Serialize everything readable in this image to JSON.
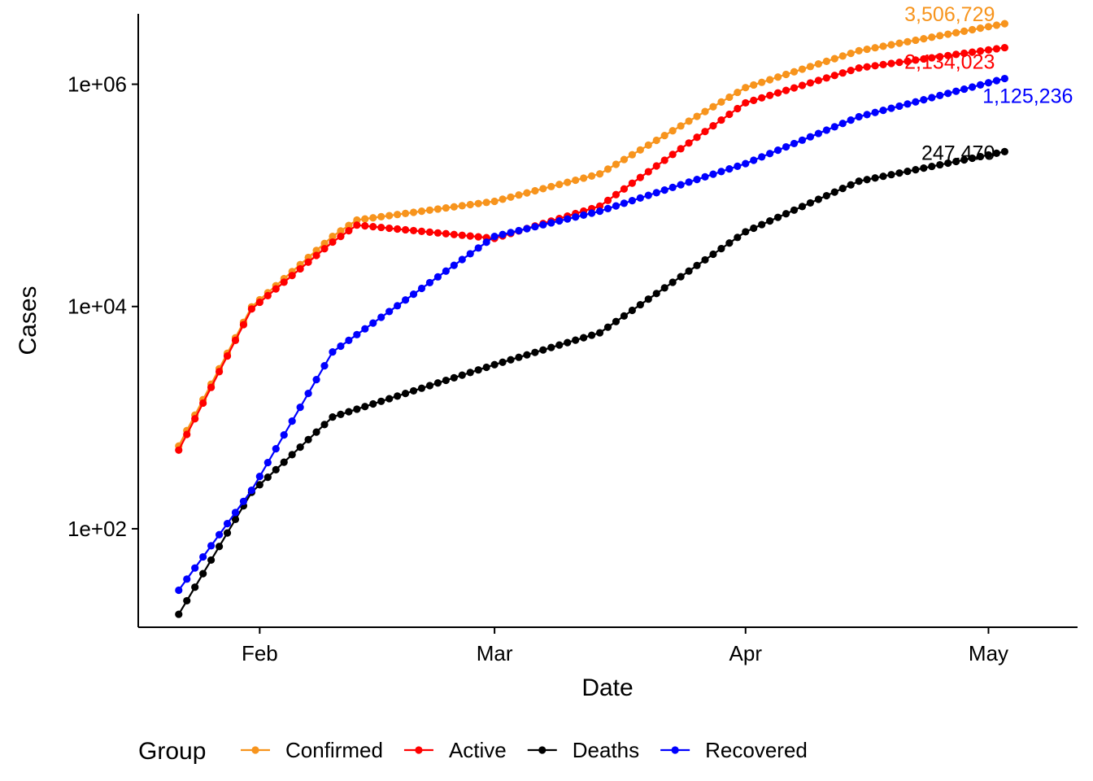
{
  "chart_data": {
    "type": "line",
    "xlabel": "Date",
    "ylabel": "Cases",
    "y_scale": "log10",
    "ylim": [
      13,
      4300000
    ],
    "xlim": [
      "2020-01-17",
      "2020-05-12"
    ],
    "x_ticks": [
      {
        "date": "2020-02-01",
        "label": "Feb"
      },
      {
        "date": "2020-03-01",
        "label": "Mar"
      },
      {
        "date": "2020-04-01",
        "label": "Apr"
      },
      {
        "date": "2020-05-01",
        "label": "May"
      }
    ],
    "y_ticks": [
      {
        "value": 100,
        "label": "1e+02"
      },
      {
        "value": 10000,
        "label": "1e+04"
      },
      {
        "value": 1000000,
        "label": "1e+06"
      }
    ],
    "grid": false,
    "legend": {
      "title": "Group",
      "position": "bottom"
    },
    "series": [
      {
        "name": "Confirmed",
        "color": "#F7941D",
        "end_label": "3,506,729",
        "points": [
          [
            "2020-01-22",
            555
          ],
          [
            "2020-01-31",
            9927
          ],
          [
            "2020-02-10",
            42762
          ],
          [
            "2020-02-13",
            60000
          ],
          [
            "2020-03-01",
            88369
          ],
          [
            "2020-03-14",
            156000
          ],
          [
            "2020-04-01",
            932605
          ],
          [
            "2020-04-15",
            2000000
          ],
          [
            "2020-05-03",
            3506729
          ]
        ]
      },
      {
        "name": "Active",
        "color": "#FF0000",
        "end_label": "2,134,023",
        "points": [
          [
            "2020-01-22",
            510
          ],
          [
            "2020-01-31",
            9500
          ],
          [
            "2020-02-10",
            38000
          ],
          [
            "2020-02-13",
            54000
          ],
          [
            "2020-03-01",
            41000
          ],
          [
            "2020-03-14",
            80000
          ],
          [
            "2020-04-01",
            680000
          ],
          [
            "2020-04-15",
            1400000
          ],
          [
            "2020-05-03",
            2134023
          ]
        ]
      },
      {
        "name": "Deaths",
        "color": "#000000",
        "end_label": "247,470",
        "points": [
          [
            "2020-01-22",
            17
          ],
          [
            "2020-01-31",
            213
          ],
          [
            "2020-02-10",
            1013
          ],
          [
            "2020-03-01",
            2996
          ],
          [
            "2020-03-14",
            5800
          ],
          [
            "2020-04-01",
            47000
          ],
          [
            "2020-04-15",
            134000
          ],
          [
            "2020-05-03",
            247470
          ]
        ]
      },
      {
        "name": "Recovered",
        "color": "#0000FF",
        "end_label": "1,125,236",
        "points": [
          [
            "2020-01-22",
            28
          ],
          [
            "2020-01-31",
            222
          ],
          [
            "2020-02-10",
            3900
          ],
          [
            "2020-03-01",
            42700
          ],
          [
            "2020-03-14",
            72000
          ],
          [
            "2020-04-01",
            193000
          ],
          [
            "2020-04-15",
            510000
          ],
          [
            "2020-05-03",
            1125236
          ]
        ]
      }
    ]
  }
}
